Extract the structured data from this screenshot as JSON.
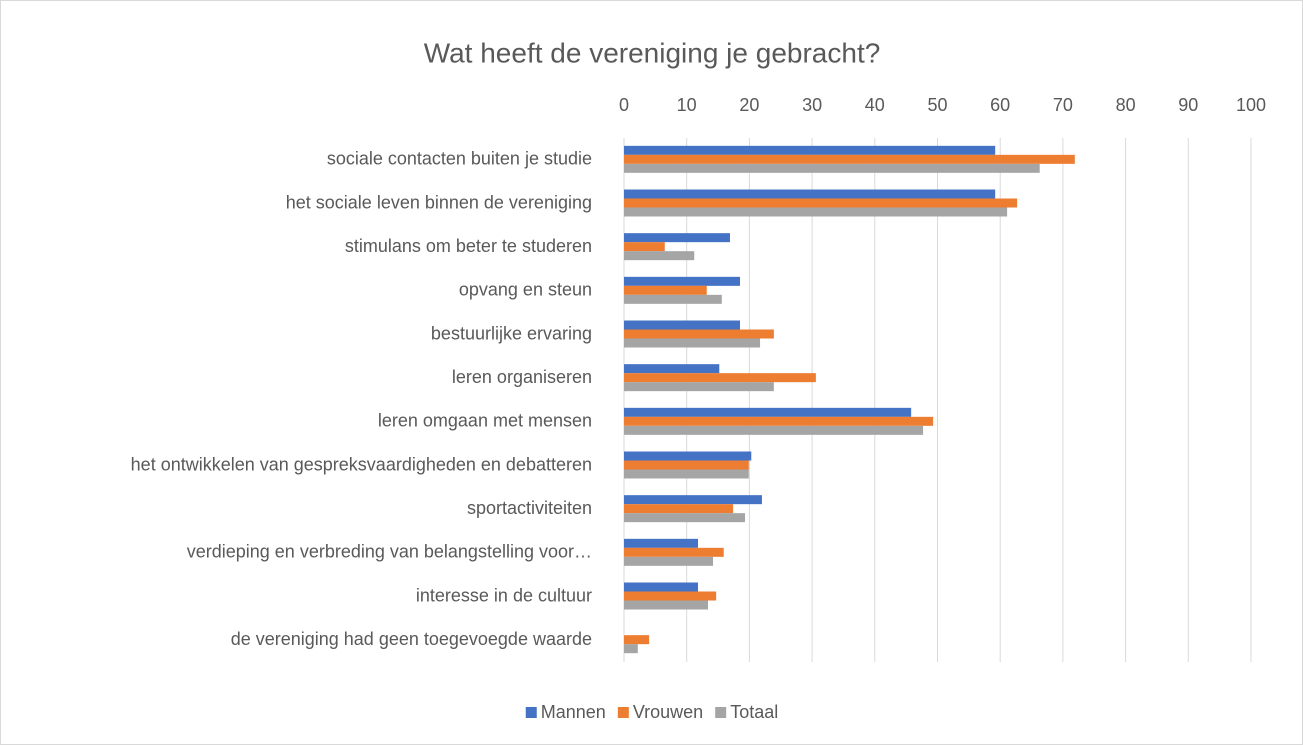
{
  "chart_data": {
    "type": "barh",
    "title": "Wat heeft de vereniging je gebracht?",
    "categories": [
      "sociale contacten buiten je studie",
      "het sociale leven binnen de vereniging",
      "stimulans om beter te studeren",
      "opvang en steun",
      "bestuurlijke ervaring",
      "leren organiseren",
      "leren omgaan met mensen",
      "het ontwikkelen van gespreksvaardigheden en debatteren",
      "sportactiviteiten",
      "verdieping en verbreding van belangstelling voor…",
      "interesse in de cultuur",
      "de vereniging had geen toegevoegde waarde"
    ],
    "series": [
      {
        "name": "Mannen",
        "color": "#4472c4",
        "values": [
          59.2,
          59.2,
          16.9,
          18.5,
          18.5,
          15.2,
          45.8,
          20.3,
          22,
          11.8,
          11.8,
          0
        ]
      },
      {
        "name": "Vrouwen",
        "color": "#ed7d31",
        "values": [
          71.9,
          62.7,
          6.5,
          13.2,
          23.9,
          30.6,
          49.3,
          19.9,
          17.4,
          15.9,
          14.7,
          4
        ]
      },
      {
        "name": "Totaal",
        "color": "#a5a5a5",
        "values": [
          66.3,
          61.1,
          11.2,
          15.6,
          21.7,
          23.9,
          47.7,
          19.9,
          19.3,
          14.2,
          13.4,
          2.2
        ]
      }
    ],
    "xlim": [
      0,
      100
    ],
    "xticks": [
      0,
      10,
      20,
      30,
      40,
      50,
      60,
      70,
      80,
      90,
      100
    ],
    "grid": true,
    "legend": "bottom"
  }
}
